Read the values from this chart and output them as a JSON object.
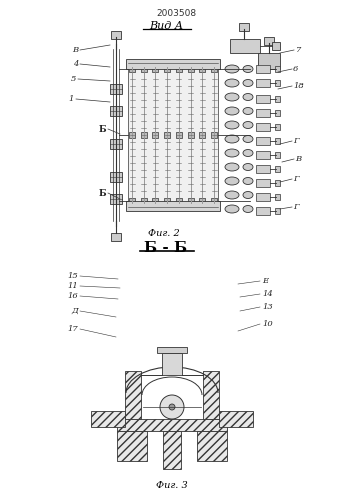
{
  "patent_number": "2003508",
  "view_a_label": "Вид А",
  "fig2_label": "Фиг. 2",
  "section_label": "Б - Б",
  "fig3_label": "Фиг. 3",
  "line_color": "#333333",
  "light_gray": "#d8d8d8",
  "mid_gray": "#aaaaaa"
}
